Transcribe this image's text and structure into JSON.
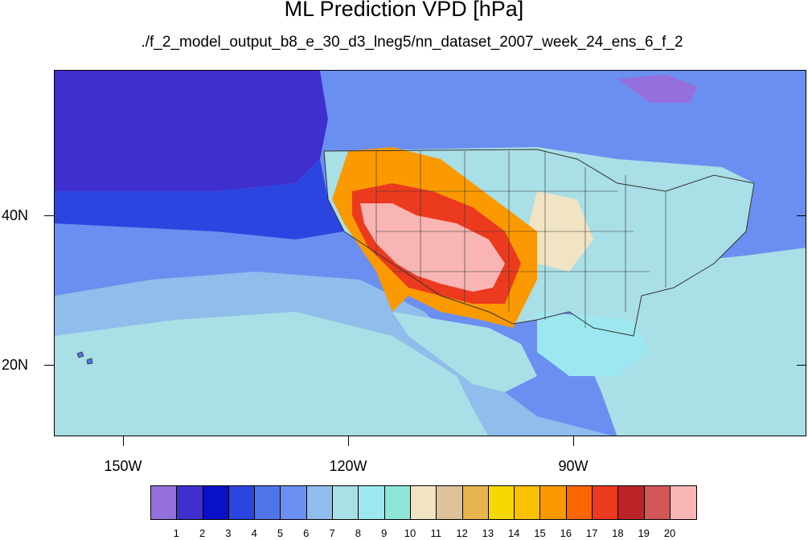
{
  "title": "ML Prediction VPD [hPa]",
  "subtitle": "./f_2_model_output_b8_e_30_d3_lneg5/nn_dataset_2007_week_24_ens_6_f_2",
  "map": {
    "projection": "cylindrical equidistant",
    "lon_range": [
      -159.5,
      -59.5
    ],
    "lat_range": [
      10.5,
      59.5
    ],
    "lon_ticks": [
      {
        "label": "150W",
        "value": -150
      },
      {
        "label": "120W",
        "value": -120
      },
      {
        "label": "90W",
        "value": -90
      }
    ],
    "lat_ticks": [
      {
        "label": "40N",
        "value": 40
      },
      {
        "label": "20N",
        "value": 20
      }
    ],
    "features": [
      "ocean-vpd-field",
      "coastlines",
      "us-state-boundaries",
      "high-vpd-southwest-us"
    ]
  },
  "colorbar": {
    "colors": [
      "#9370db",
      "#3f2fcf",
      "#0a10c8",
      "#2c45e0",
      "#4f74ea",
      "#6b8ff0",
      "#8fbdec",
      "#a9dfe6",
      "#9de8f0",
      "#8ee6d8",
      "#f1e4c4",
      "#ddc29a",
      "#e8b44e",
      "#f5d800",
      "#f9c100",
      "#fb9a00",
      "#fc6600",
      "#ec3a1e",
      "#ba2427",
      "#d15656",
      "#f9b4b4"
    ],
    "labels": [
      "1",
      "2",
      "3",
      "4",
      "5",
      "6",
      "7",
      "8",
      "9",
      "10",
      "11",
      "12",
      "13",
      "14",
      "15",
      "16",
      "17",
      "18",
      "19",
      "20"
    ]
  }
}
